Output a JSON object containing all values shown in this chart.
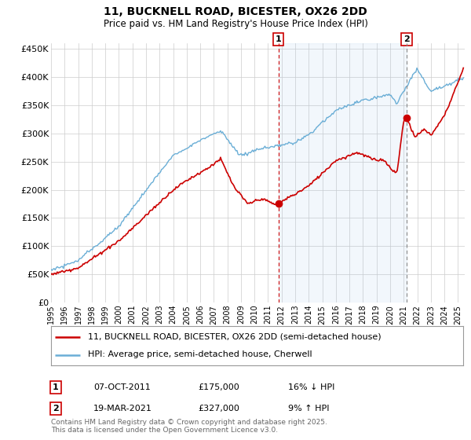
{
  "title": "11, BUCKNELL ROAD, BICESTER, OX26 2DD",
  "subtitle": "Price paid vs. HM Land Registry's House Price Index (HPI)",
  "ylabel_ticks": [
    "£0",
    "£50K",
    "£100K",
    "£150K",
    "£200K",
    "£250K",
    "£300K",
    "£350K",
    "£400K",
    "£450K"
  ],
  "ylabel_values": [
    0,
    50000,
    100000,
    150000,
    200000,
    250000,
    300000,
    350000,
    400000,
    450000
  ],
  "ylim": [
    0,
    460000
  ],
  "xlim_start": 1995,
  "xlim_end": 2025.5,
  "hpi_color": "#6aaed6",
  "price_color": "#cc0000",
  "shade_color": "#ddeeff",
  "marker1_date": 2011.77,
  "marker1_price": 175000,
  "marker1_label": "07-OCT-2011",
  "marker2_date": 2021.22,
  "marker2_price": 327000,
  "marker2_label": "19-MAR-2021",
  "legend_line1": "11, BUCKNELL ROAD, BICESTER, OX26 2DD (semi-detached house)",
  "legend_line2": "HPI: Average price, semi-detached house, Cherwell",
  "ann1_date": "07-OCT-2011",
  "ann1_price": "£175,000",
  "ann1_detail": "16% ↓ HPI",
  "ann2_date": "19-MAR-2021",
  "ann2_price": "£327,000",
  "ann2_detail": "9% ↑ HPI",
  "footnote": "Contains HM Land Registry data © Crown copyright and database right 2025.\nThis data is licensed under the Open Government Licence v3.0.",
  "background_color": "#ffffff",
  "grid_color": "#cccccc"
}
